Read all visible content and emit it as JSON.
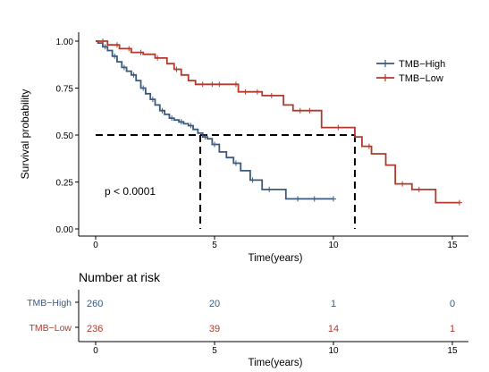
{
  "chart_data": [
    {
      "type": "line",
      "subtype": "kaplan-meier",
      "title": "",
      "xlabel": "Time(years)",
      "ylabel": "Survival probability",
      "xlim": [
        -0.8,
        15.6
      ],
      "ylim": [
        0,
        1.05
      ],
      "xticks": [
        "0",
        "5",
        "10",
        "15"
      ],
      "yticks": [
        "0.00",
        "0.25",
        "0.50",
        "0.75",
        "1.00"
      ],
      "legend": {
        "placement": "top-right",
        "entries": [
          "TMB−High",
          "TMB−Low"
        ]
      },
      "annotation": "p < 0.0001",
      "median_survival": {
        "y": 0.5,
        "TMB−High": 4.4,
        "TMB−Low": 10.9
      },
      "series": [
        {
          "name": "TMB−High",
          "color": "#3a5a7f",
          "x": [
            0,
            0.1,
            0.3,
            0.5,
            0.7,
            0.9,
            1.1,
            1.3,
            1.5,
            1.7,
            1.9,
            2.1,
            2.3,
            2.5,
            2.7,
            2.9,
            3.1,
            3.3,
            3.5,
            3.7,
            3.9,
            4.1,
            4.3,
            4.5,
            4.7,
            4.9,
            5.2,
            5.5,
            5.8,
            6.1,
            6.5,
            7.0,
            8.0,
            9.0,
            10.0
          ],
          "y": [
            1.0,
            0.99,
            0.97,
            0.95,
            0.92,
            0.89,
            0.86,
            0.84,
            0.82,
            0.79,
            0.75,
            0.72,
            0.69,
            0.66,
            0.63,
            0.61,
            0.59,
            0.58,
            0.57,
            0.56,
            0.55,
            0.53,
            0.51,
            0.49,
            0.48,
            0.45,
            0.41,
            0.38,
            0.35,
            0.31,
            0.26,
            0.21,
            0.16,
            0.16,
            0.16
          ],
          "censor_x": [
            0.4,
            0.8,
            1.2,
            1.6,
            2.0,
            2.4,
            2.8,
            3.2,
            3.6,
            4.0,
            4.6,
            5.0,
            5.9,
            6.6,
            7.3,
            8.5,
            9.2,
            10.0
          ]
        },
        {
          "name": "TMB−Low",
          "color": "#b03a2e",
          "x": [
            0,
            0.5,
            1.0,
            1.5,
            2.0,
            2.5,
            3.0,
            3.3,
            3.6,
            3.9,
            4.2,
            5.0,
            6.0,
            6.5,
            7.0,
            7.9,
            8.3,
            9.5,
            10.9,
            11.2,
            11.6,
            12.2,
            12.6,
            13.3,
            14.3,
            15.3
          ],
          "y": [
            1.0,
            0.98,
            0.96,
            0.94,
            0.93,
            0.91,
            0.88,
            0.85,
            0.82,
            0.79,
            0.77,
            0.77,
            0.73,
            0.73,
            0.71,
            0.66,
            0.63,
            0.54,
            0.49,
            0.44,
            0.4,
            0.34,
            0.24,
            0.21,
            0.14,
            0.14
          ],
          "censor_x": [
            0.3,
            0.9,
            1.4,
            1.9,
            2.6,
            3.4,
            4.5,
            4.9,
            5.2,
            5.9,
            6.3,
            6.8,
            7.4,
            8.6,
            9.0,
            10.2,
            11.5,
            12.9,
            13.6,
            15.3
          ]
        }
      ]
    },
    {
      "type": "table",
      "title": "Number at risk",
      "xlabel": "Time(years)",
      "xticks": [
        "0",
        "5",
        "10",
        "15"
      ],
      "columns": [
        0,
        5,
        10,
        15
      ],
      "rows": [
        {
          "name": "TMB−High",
          "color": "#3a5a7f",
          "values": [
            260,
            20,
            1,
            0
          ]
        },
        {
          "name": "TMB−Low",
          "color": "#b03a2e",
          "values": [
            236,
            39,
            14,
            1
          ]
        }
      ]
    }
  ]
}
